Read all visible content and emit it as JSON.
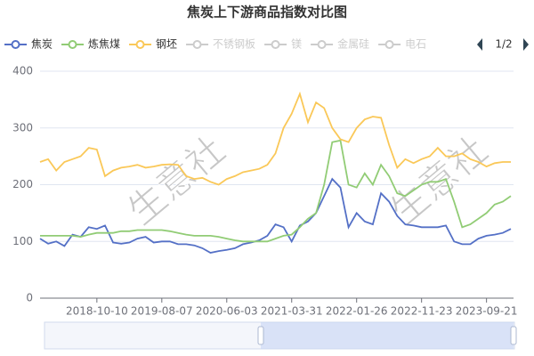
{
  "chart_data": {
    "type": "line",
    "title": "焦炭上下游商品指数对比图",
    "watermark": "生意社",
    "legend_page": "1/2",
    "legend_inactive": [
      "不锈钢板",
      "镁",
      "金属硅",
      "电石"
    ],
    "inactive_color": "#cccccc",
    "categories": [
      null,
      null,
      null,
      null,
      null,
      null,
      null,
      "2018-10-10",
      null,
      null,
      null,
      null,
      null,
      null,
      null,
      "2019-08-07",
      null,
      null,
      null,
      null,
      null,
      null,
      null,
      "2020-06-03",
      null,
      null,
      null,
      null,
      null,
      null,
      null,
      "2021-03-31",
      null,
      null,
      null,
      null,
      null,
      null,
      null,
      "2022-01-26",
      null,
      null,
      null,
      null,
      null,
      null,
      null,
      "2022-11-23",
      null,
      null,
      null,
      null,
      null,
      null,
      null,
      "2023-09-21",
      null,
      null,
      null
    ],
    "series": [
      {
        "name": "焦炭",
        "color": "#5470c6",
        "values": [
          105,
          96,
          100,
          92,
          112,
          108,
          125,
          122,
          128,
          98,
          96,
          98,
          105,
          108,
          98,
          100,
          100,
          95,
          95,
          93,
          88,
          80,
          83,
          85,
          88,
          95,
          98,
          102,
          110,
          130,
          125,
          100,
          128,
          135,
          150,
          180,
          210,
          195,
          125,
          150,
          135,
          130,
          185,
          170,
          145,
          130,
          128,
          125,
          125,
          125,
          128,
          100,
          95,
          95,
          105,
          110,
          112,
          115,
          122
        ]
      },
      {
        "name": "炼焦煤",
        "color": "#91cc75",
        "values": [
          110,
          110,
          110,
          110,
          110,
          108,
          112,
          115,
          115,
          115,
          118,
          118,
          120,
          120,
          120,
          120,
          118,
          115,
          112,
          110,
          110,
          110,
          108,
          105,
          102,
          100,
          100,
          100,
          100,
          105,
          110,
          112,
          125,
          140,
          150,
          200,
          275,
          278,
          200,
          195,
          220,
          200,
          235,
          215,
          185,
          180,
          190,
          200,
          205,
          205,
          210,
          170,
          125,
          130,
          140,
          150,
          165,
          170,
          180
        ]
      },
      {
        "name": "钢坯",
        "color": "#fac858",
        "values": [
          240,
          245,
          225,
          240,
          245,
          250,
          265,
          262,
          215,
          225,
          230,
          232,
          235,
          230,
          232,
          235,
          236,
          235,
          215,
          210,
          212,
          205,
          200,
          210,
          215,
          222,
          225,
          228,
          235,
          255,
          300,
          325,
          360,
          310,
          345,
          335,
          300,
          280,
          275,
          300,
          315,
          320,
          318,
          270,
          230,
          245,
          238,
          245,
          250,
          265,
          250,
          250,
          255,
          245,
          240,
          232,
          238,
          240,
          240
        ]
      }
    ],
    "ylim": [
      0,
      400
    ],
    "yticks": [
      0,
      100,
      200,
      300,
      400
    ],
    "grid": true
  }
}
